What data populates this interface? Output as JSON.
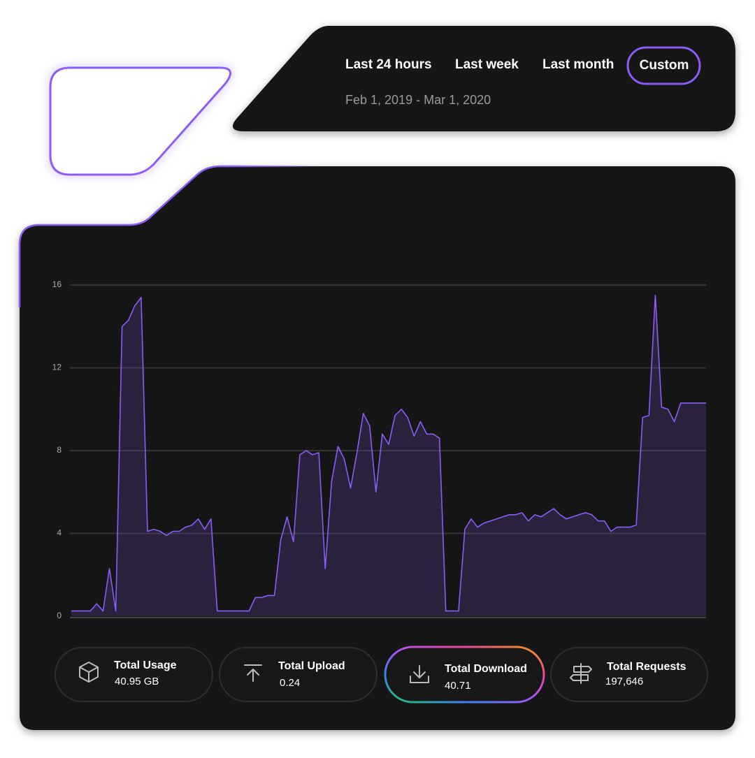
{
  "time_filters": {
    "options": [
      "Last 24 hours",
      "Last week",
      "Last month",
      "Custom"
    ],
    "date_range": "Feb 1, 2019 - Mar 1, 2020"
  },
  "chart_data": {
    "type": "area",
    "color": "#8b5cf6",
    "values": [
      0.25,
      0.25,
      0.25,
      0.25,
      0.6,
      0.25,
      2.3,
      0.25,
      14,
      14.3,
      15,
      15.4,
      4.1,
      4.2,
      4.1,
      3.9,
      4.1,
      4.1,
      4.3,
      4.4,
      4.7,
      4.2,
      4.7,
      0.25,
      0.25,
      0.25,
      0.25,
      0.25,
      0.25,
      0.9,
      0.9,
      1,
      1,
      3.7,
      4.8,
      3.6,
      7.8,
      8,
      7.8,
      7.9,
      2.3,
      6.5,
      8.2,
      7.6,
      6.2,
      7.9,
      9.8,
      9.2,
      6,
      8.8,
      8.3,
      9.7,
      10,
      9.6,
      8.7,
      9.4,
      8.8,
      8.8,
      8.6,
      0.25,
      0.25,
      0.25,
      4.2,
      4.7,
      4.3,
      4.5,
      4.6,
      4.7,
      4.8,
      4.9,
      4.9,
      5,
      4.6,
      4.9,
      4.8,
      5,
      5.2,
      4.9,
      4.7,
      4.8,
      4.9,
      5,
      4.9,
      4.6,
      4.6,
      4.1,
      4.3,
      4.3,
      4.3,
      4.4,
      9.6,
      9.7,
      15.5,
      10.1,
      10,
      9.4,
      10.3,
      10.3,
      10.3,
      10.3,
      10.3
    ],
    "ylim": [
      0,
      16
    ],
    "yticks": [
      0,
      4,
      8,
      12,
      16
    ],
    "grid": true
  },
  "stats": [
    {
      "label": "Total Usage",
      "value": "40.95 GB"
    },
    {
      "label": "Total Upload",
      "value": "0.24"
    },
    {
      "label": "Total Download",
      "value": "40.71"
    },
    {
      "label": "Total Requests",
      "value": "197,646"
    }
  ]
}
